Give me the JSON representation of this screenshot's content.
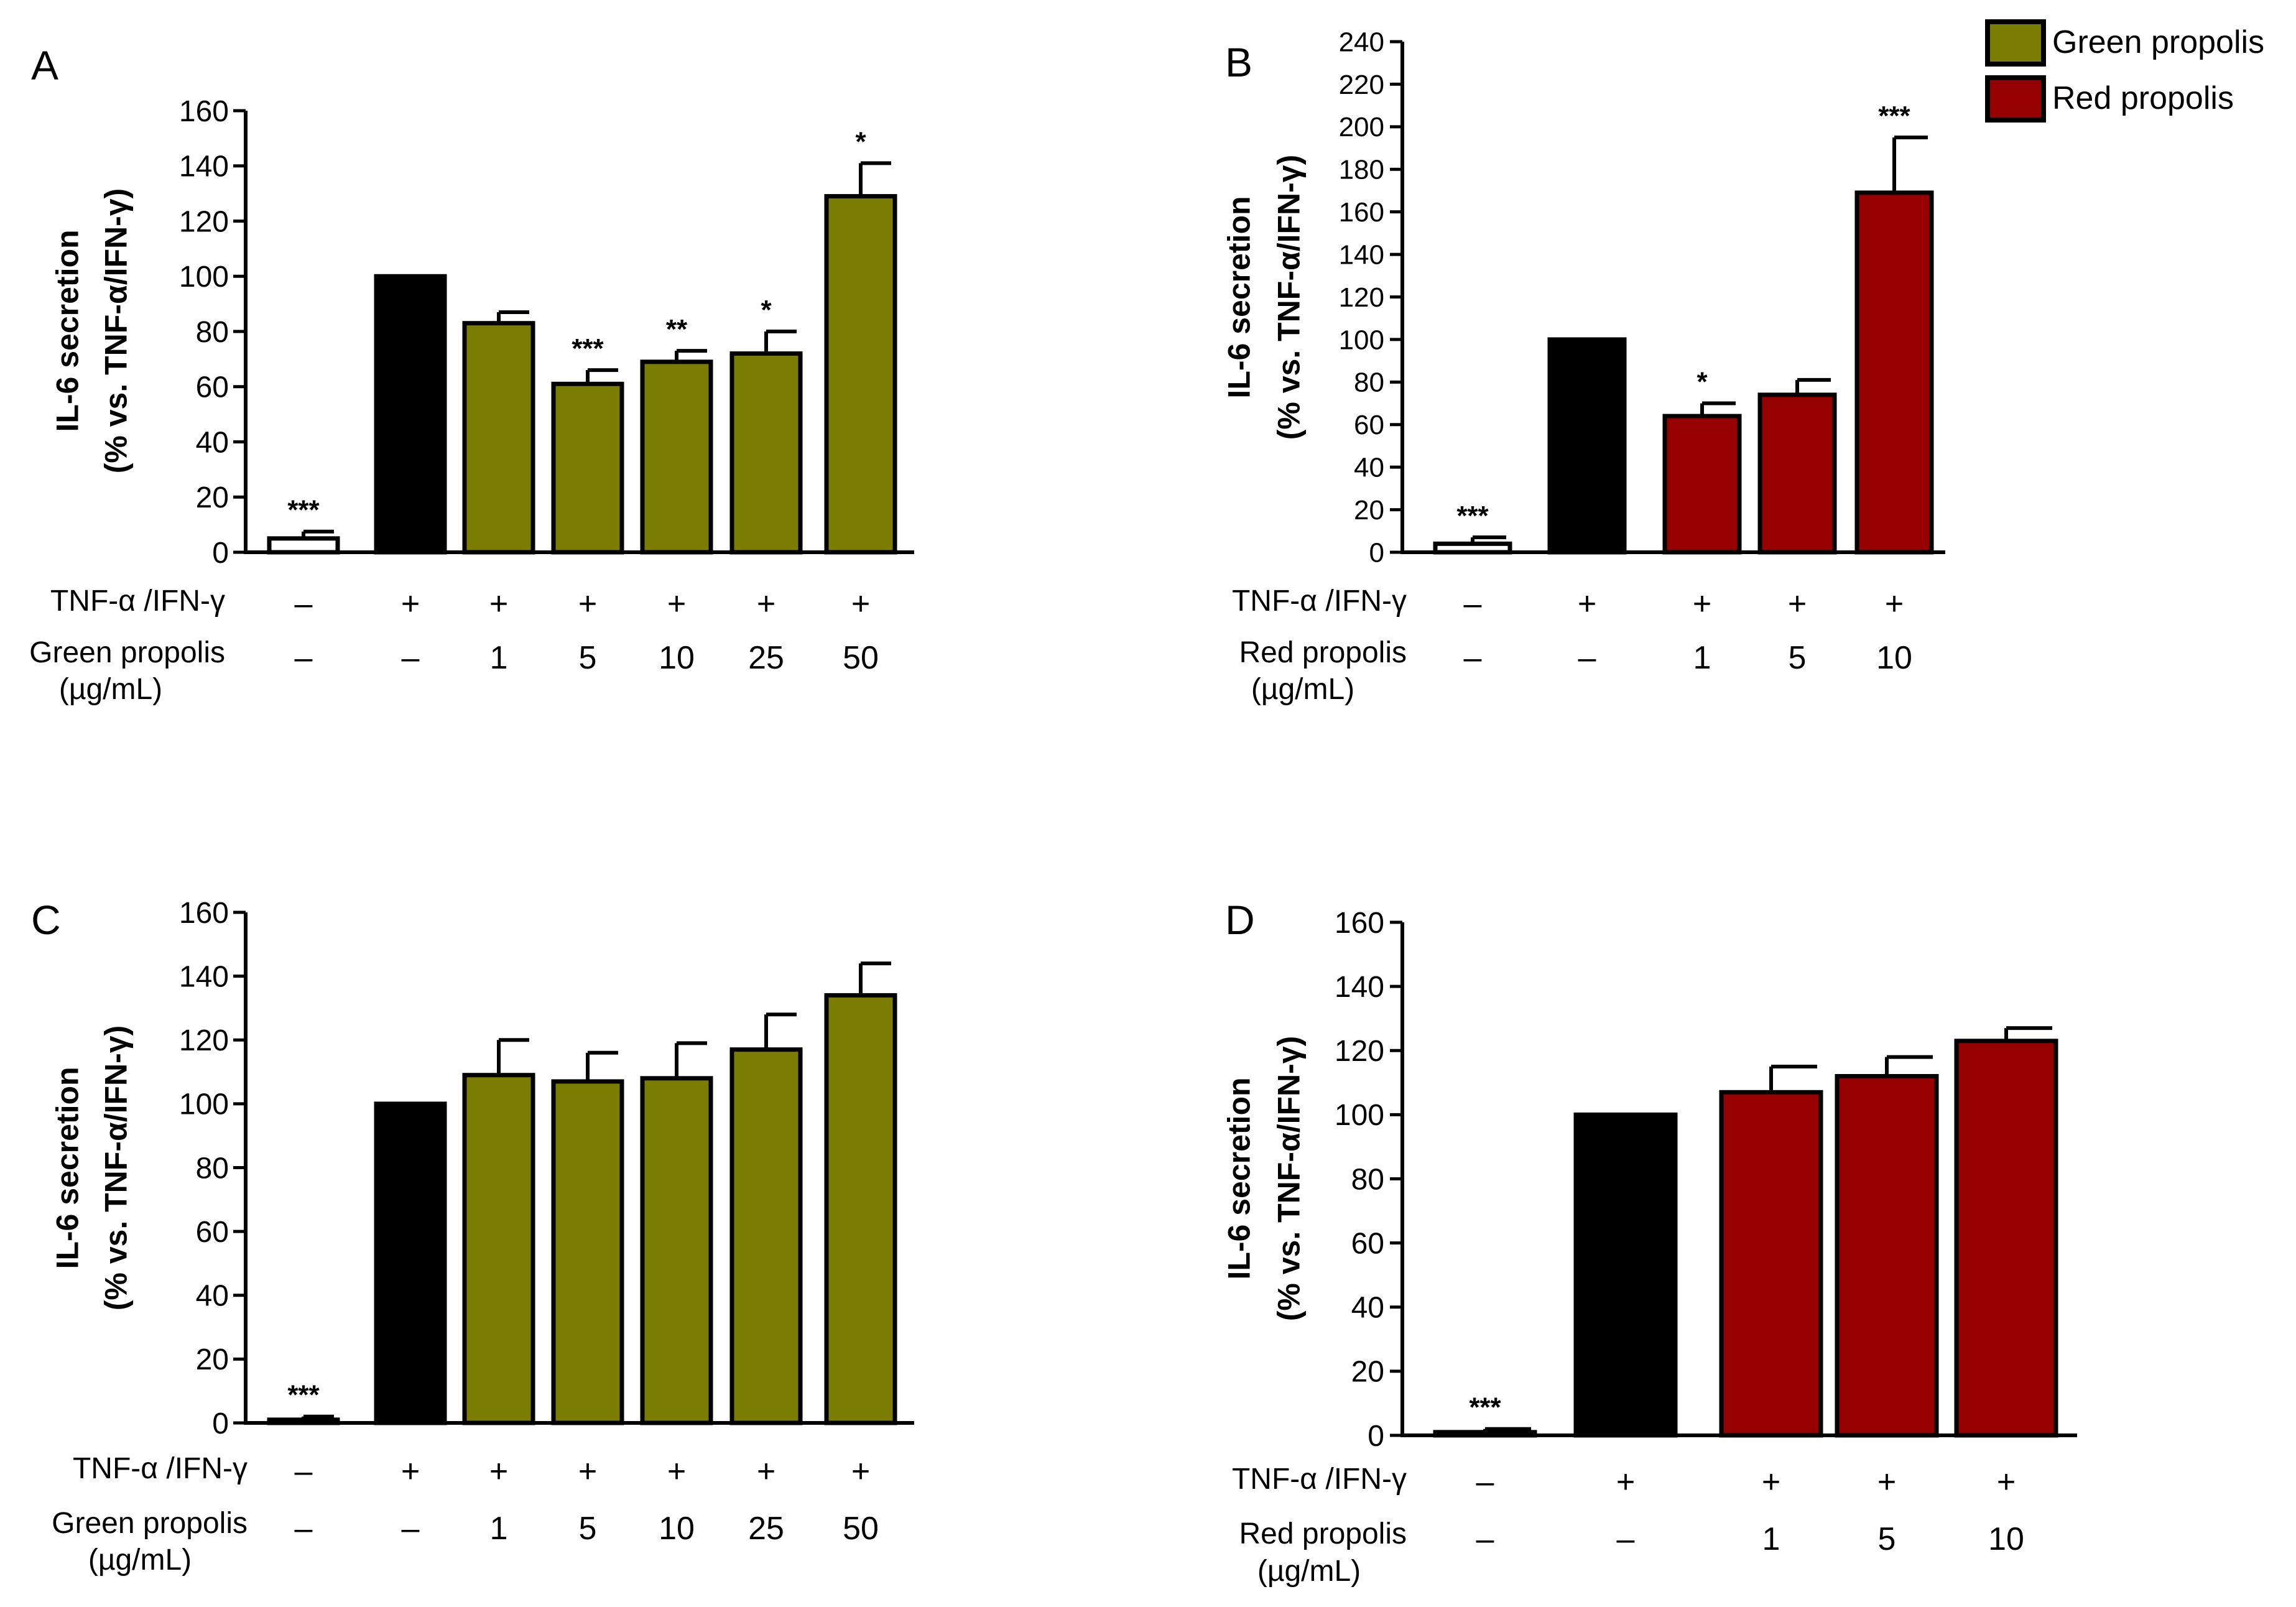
{
  "colors": {
    "green": "#7a7d02",
    "red": "#960000",
    "black": "#000000",
    "white": "#ffffff",
    "stroke": "#000000"
  },
  "legend": {
    "items": [
      {
        "label": "Green propolis",
        "color": "#7a7d02"
      },
      {
        "label": "Red propolis",
        "color": "#960000"
      }
    ]
  },
  "chart_data": [
    {
      "panel": "A",
      "type": "bar",
      "ylabel_line1": "IL-6 secretion",
      "ylabel_line2": "(% vs. TNF-α/IFN-γ)",
      "ylim": [
        0,
        160
      ],
      "yticks": [
        0,
        20,
        40,
        60,
        80,
        100,
        120,
        140,
        160
      ],
      "row1_label": "TNF-α /IFN-γ",
      "row2_label": "Green propolis",
      "row2_unit": "(µg/mL)",
      "row1": [
        "–",
        "+",
        "+",
        "+",
        "+",
        "+",
        "+"
      ],
      "row2": [
        "–",
        "–",
        "1",
        "5",
        "10",
        "25",
        "50"
      ],
      "values": [
        5,
        100,
        83,
        61,
        69,
        72,
        129
      ],
      "errors": [
        2.5,
        0,
        4,
        5,
        4,
        8,
        12
      ],
      "fills": [
        "white",
        "black",
        "green",
        "green",
        "green",
        "green",
        "green"
      ],
      "significance": [
        "***",
        "",
        "",
        "***",
        "**",
        "*",
        "*"
      ]
    },
    {
      "panel": "B",
      "type": "bar",
      "ylabel_line1": "IL-6 secretion",
      "ylabel_line2": "(% vs. TNF-α/IFN-γ)",
      "ylim": [
        0,
        240
      ],
      "yticks": [
        0,
        20,
        40,
        60,
        80,
        100,
        120,
        140,
        160,
        180,
        200,
        220,
        240
      ],
      "row1_label": "TNF-α /IFN-γ",
      "row2_label": "Red propolis",
      "row2_unit": "(µg/mL)",
      "row1": [
        "–",
        "+",
        "+",
        "+",
        "+"
      ],
      "row2": [
        "–",
        "–",
        "1",
        "5",
        "10"
      ],
      "values": [
        4,
        100,
        64,
        74,
        169
      ],
      "errors": [
        3,
        0,
        6,
        7,
        26
      ],
      "fills": [
        "white",
        "black",
        "red",
        "red",
        "red"
      ],
      "significance": [
        "***",
        "",
        "*",
        "",
        "***"
      ]
    },
    {
      "panel": "C",
      "type": "bar",
      "ylabel_line1": "IL-6 secretion",
      "ylabel_line2": "(% vs. TNF-α/IFN-γ)",
      "ylim": [
        0,
        160
      ],
      "yticks": [
        0,
        20,
        40,
        60,
        80,
        100,
        120,
        140,
        160
      ],
      "row1_label": "TNF-α /IFN-γ",
      "row2_label": "Green propolis",
      "row2_unit": "(µg/mL)",
      "row1": [
        "–",
        "+",
        "+",
        "+",
        "+",
        "+",
        "+"
      ],
      "row2": [
        "–",
        "–",
        "1",
        "5",
        "10",
        "25",
        "50"
      ],
      "values": [
        1,
        100,
        109,
        107,
        108,
        117,
        134
      ],
      "errors": [
        1,
        0,
        11,
        9,
        11,
        11,
        10
      ],
      "fills": [
        "white",
        "black",
        "green",
        "green",
        "green",
        "green",
        "green"
      ],
      "significance": [
        "***",
        "",
        "",
        "",
        "",
        "",
        ""
      ]
    },
    {
      "panel": "D",
      "type": "bar",
      "ylabel_line1": "IL-6 secretion",
      "ylabel_line2": "(% vs. TNF-α/IFN-γ)",
      "ylim": [
        0,
        160
      ],
      "yticks": [
        0,
        20,
        40,
        60,
        80,
        100,
        120,
        140,
        160
      ],
      "row1_label": "TNF-α /IFN-γ",
      "row2_label": "Red propolis",
      "row2_unit": "(µg/mL)",
      "row1": [
        "–",
        "+",
        "+",
        "+",
        "+"
      ],
      "row2": [
        "–",
        "–",
        "1",
        "5",
        "10"
      ],
      "values": [
        1,
        100,
        107,
        112,
        123
      ],
      "errors": [
        1,
        0,
        8,
        6,
        4
      ],
      "fills": [
        "white",
        "black",
        "red",
        "red",
        "red"
      ],
      "significance": [
        "***",
        "",
        "",
        "",
        ""
      ]
    }
  ]
}
